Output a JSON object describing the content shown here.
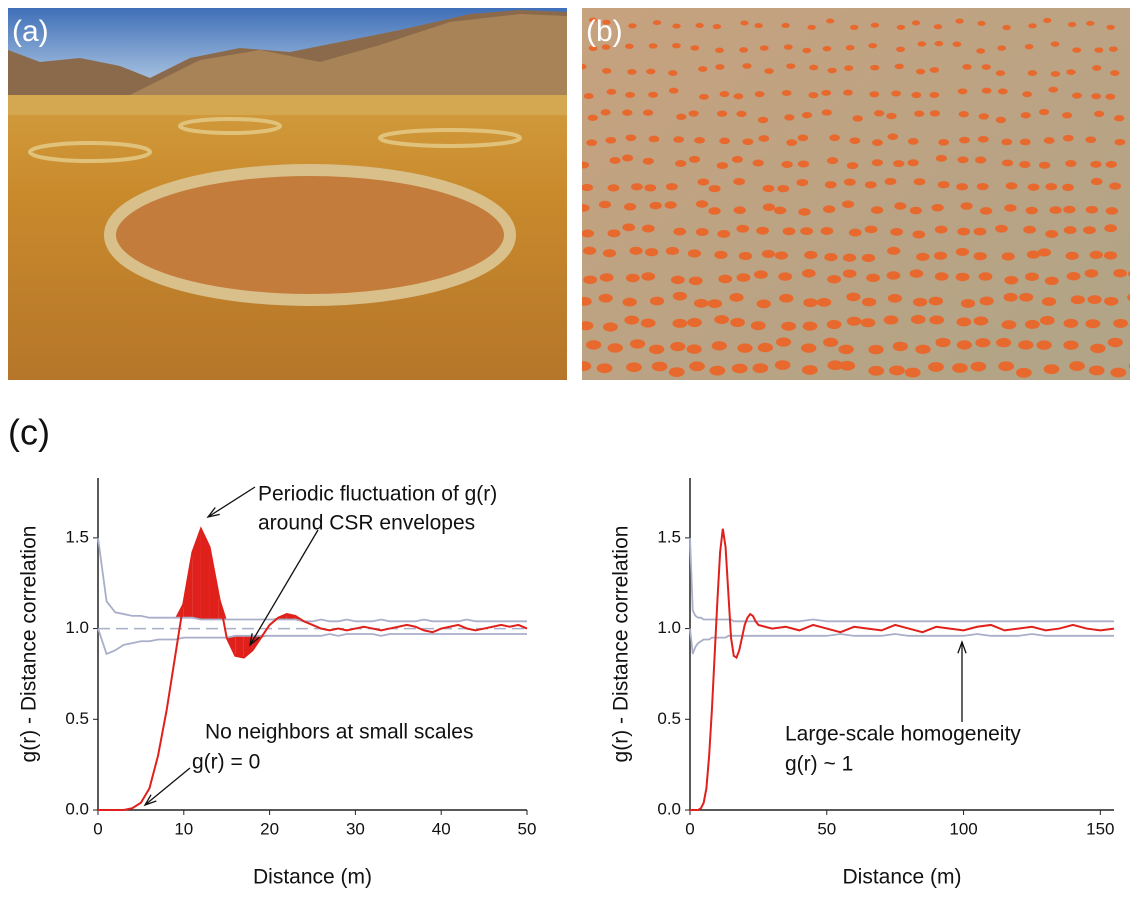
{
  "panel_labels": [
    "(a)",
    "(b)",
    "(c)"
  ],
  "chart_data": [
    {
      "type": "line",
      "y_label": "g(r) - Distance correlation",
      "x_label": "Distance (m)",
      "annotations": [
        "Periodic fluctuation of g(r)",
        "around CSR envelopes",
        "No neighbors at small scales",
        "g(r) = 0"
      ],
      "xlim": [
        0,
        50
      ],
      "ylim": [
        0,
        1.83
      ],
      "xticks": [
        0,
        10,
        20,
        30,
        40,
        50
      ],
      "yticks": [
        {
          "value": 0,
          "label": "0.0"
        },
        {
          "value": 0.5,
          "label": "0.5"
        },
        {
          "value": 1,
          "label": "1.0"
        },
        {
          "value": 1.5,
          "label": "1.5"
        }
      ],
      "hline": 1,
      "shade": true,
      "x": [
        0,
        1,
        2,
        3,
        4,
        5,
        6,
        7,
        8,
        9,
        10,
        11,
        12,
        13,
        14,
        15,
        16,
        17,
        18,
        19,
        20,
        21,
        22,
        23,
        24,
        25,
        26,
        27,
        28,
        29,
        30,
        31,
        32,
        33,
        34,
        35,
        36,
        37,
        38,
        39,
        40,
        41,
        42,
        43,
        44,
        45,
        46,
        47,
        48,
        49,
        50
      ],
      "series": [
        {
          "color": "#a9aec9",
          "values": [
            1.5,
            1.15,
            1.09,
            1.08,
            1.07,
            1.07,
            1.06,
            1.06,
            1.06,
            1.06,
            1.06,
            1.06,
            1.05,
            1.05,
            1.05,
            1.05,
            1.05,
            1.05,
            1.05,
            1.05,
            1.05,
            1.05,
            1.05,
            1.05,
            1.04,
            1.04,
            1.05,
            1.04,
            1.04,
            1.05,
            1.04,
            1.04,
            1.04,
            1.05,
            1.04,
            1.04,
            1.04,
            1.04,
            1.05,
            1.04,
            1.04,
            1.04,
            1.04,
            1.05,
            1.04,
            1.04,
            1.04,
            1.04,
            1.04,
            1.04,
            1.04
          ]
        },
        {
          "color": "#a9aec9",
          "values": [
            1.0,
            0.86,
            0.88,
            0.91,
            0.92,
            0.93,
            0.93,
            0.94,
            0.94,
            0.94,
            0.95,
            0.95,
            0.95,
            0.95,
            0.95,
            0.95,
            0.96,
            0.96,
            0.96,
            0.96,
            0.96,
            0.96,
            0.96,
            0.96,
            0.96,
            0.96,
            0.96,
            0.97,
            0.96,
            0.97,
            0.97,
            0.97,
            0.97,
            0.96,
            0.97,
            0.97,
            0.97,
            0.97,
            0.97,
            0.97,
            0.97,
            0.97,
            0.97,
            0.97,
            0.97,
            0.97,
            0.97,
            0.97,
            0.97,
            0.97,
            0.97
          ]
        },
        {
          "color": "#e0201b",
          "values": [
            0,
            0,
            0,
            0,
            0.01,
            0.04,
            0.12,
            0.3,
            0.55,
            0.85,
            1.15,
            1.42,
            1.55,
            1.45,
            1.2,
            0.95,
            0.85,
            0.84,
            0.88,
            0.95,
            1.02,
            1.06,
            1.08,
            1.07,
            1.04,
            1.02,
            1.0,
            0.99,
            1.0,
            0.99,
            1.0,
            1.01,
            1.0,
            0.99,
            1.0,
            1.01,
            1.02,
            1.01,
            0.99,
            0.98,
            1.0,
            1.01,
            1.02,
            1.0,
            0.99,
            1.0,
            1.01,
            1.02,
            1.01,
            1.02,
            1.0
          ]
        }
      ]
    },
    {
      "type": "line",
      "y_label": "g(r) - Distance correlation",
      "x_label": "Distance (m)",
      "annotations": [
        "Large-scale homogeneity",
        "g(r) ~ 1"
      ],
      "xlim": [
        0,
        155
      ],
      "ylim": [
        0,
        1.83
      ],
      "xticks": [
        0,
        50,
        100,
        150
      ],
      "yticks": [
        {
          "value": 0,
          "label": "0.0"
        },
        {
          "value": 0.5,
          "label": "0.5"
        },
        {
          "value": 1,
          "label": "1.0"
        },
        {
          "value": 1.5,
          "label": "1.5"
        }
      ],
      "x": [
        0,
        1,
        2,
        3,
        4,
        5,
        6,
        7,
        8,
        9,
        10,
        11,
        12,
        13,
        14,
        15,
        16,
        17,
        18,
        19,
        20,
        21,
        22,
        23,
        24,
        25,
        30,
        35,
        40,
        45,
        50,
        55,
        60,
        65,
        70,
        75,
        80,
        85,
        90,
        95,
        100,
        105,
        110,
        115,
        120,
        125,
        130,
        135,
        140,
        145,
        150,
        155
      ],
      "series": [
        {
          "color": "#a9aec9",
          "values": [
            1.5,
            1.1,
            1.07,
            1.06,
            1.06,
            1.05,
            1.05,
            1.05,
            1.05,
            1.05,
            1.05,
            1.05,
            1.05,
            1.05,
            1.05,
            1.05,
            1.04,
            1.04,
            1.04,
            1.04,
            1.04,
            1.04,
            1.04,
            1.04,
            1.04,
            1.04,
            1.04,
            1.04,
            1.04,
            1.05,
            1.04,
            1.04,
            1.04,
            1.04,
            1.04,
            1.04,
            1.04,
            1.04,
            1.04,
            1.04,
            1.04,
            1.04,
            1.04,
            1.04,
            1.04,
            1.04,
            1.04,
            1.04,
            1.04,
            1.04,
            1.04,
            1.04
          ]
        },
        {
          "color": "#a9aec9",
          "values": [
            1.0,
            0.86,
            0.9,
            0.92,
            0.93,
            0.94,
            0.94,
            0.94,
            0.95,
            0.95,
            0.95,
            0.95,
            0.95,
            0.95,
            0.96,
            0.96,
            0.96,
            0.96,
            0.96,
            0.96,
            0.96,
            0.96,
            0.96,
            0.96,
            0.96,
            0.96,
            0.96,
            0.96,
            0.96,
            0.96,
            0.96,
            0.97,
            0.96,
            0.96,
            0.96,
            0.97,
            0.96,
            0.96,
            0.96,
            0.96,
            0.96,
            0.97,
            0.96,
            0.96,
            0.96,
            0.97,
            0.96,
            0.96,
            0.96,
            0.96,
            0.96,
            0.96
          ]
        },
        {
          "color": "#e0201b",
          "values": [
            0,
            0,
            0,
            0,
            0.01,
            0.04,
            0.12,
            0.3,
            0.55,
            0.85,
            1.15,
            1.42,
            1.55,
            1.45,
            1.2,
            0.95,
            0.85,
            0.84,
            0.88,
            0.95,
            1.02,
            1.06,
            1.08,
            1.07,
            1.04,
            1.02,
            1.0,
            1.01,
            0.99,
            1.02,
            1.0,
            0.98,
            1.01,
            1.0,
            0.99,
            1.02,
            1.0,
            0.98,
            1.01,
            1.0,
            0.99,
            1.01,
            1.02,
            0.99,
            1.0,
            1.01,
            0.99,
            1.0,
            1.02,
            1.0,
            0.99,
            1.0
          ]
        }
      ]
    }
  ]
}
